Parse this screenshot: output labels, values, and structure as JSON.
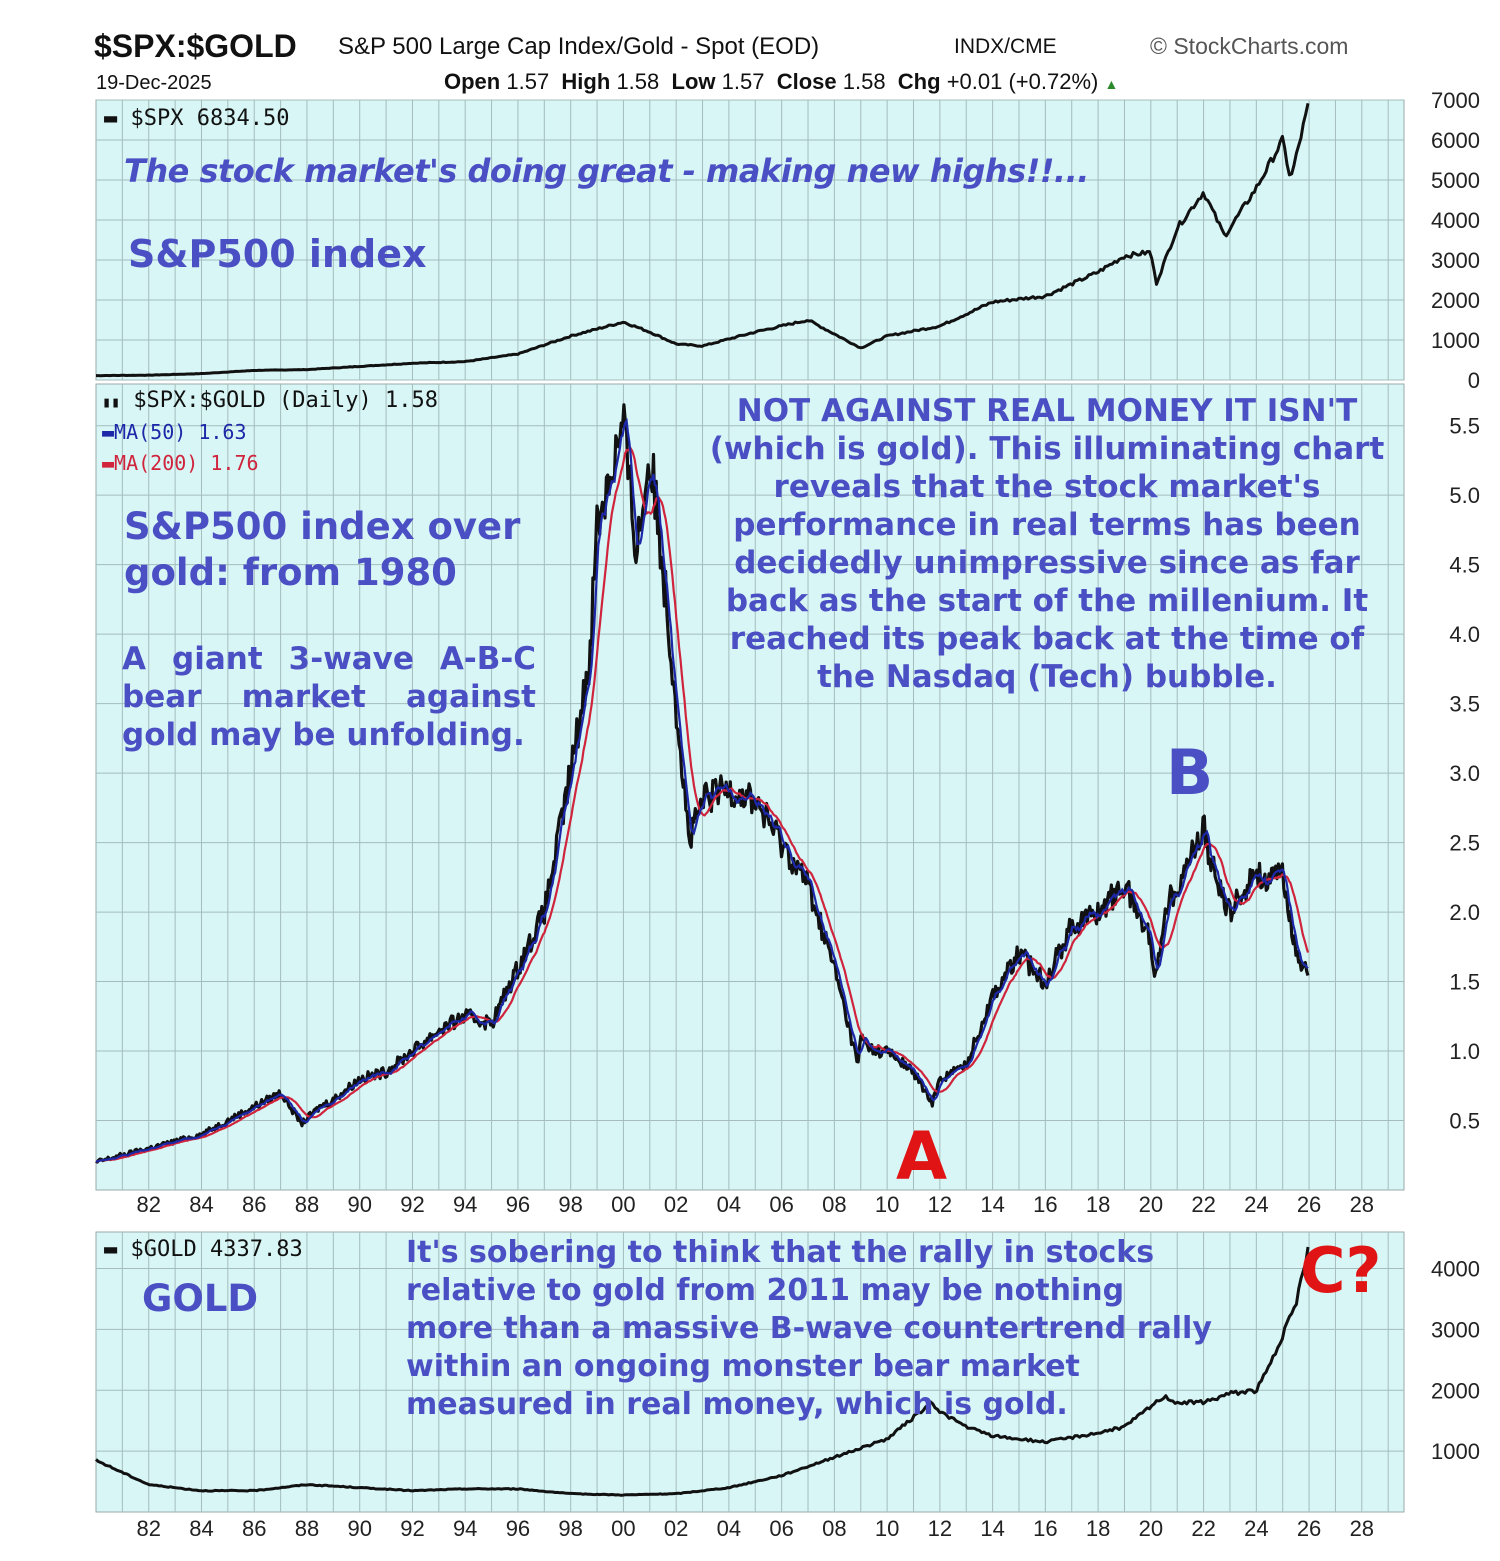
{
  "header": {
    "symbol": "$SPX:$GOLD",
    "description": "S&P 500 Large Cap Index/Gold - Spot (EOD)",
    "exchange": "INDX/CME",
    "source": "© StockCharts.com",
    "date": "19-Dec-2025",
    "open_label": "Open",
    "open": "1.57",
    "high_label": "High",
    "high": "1.58",
    "low_label": "Low",
    "low": "1.57",
    "close_label": "Close",
    "close": "1.58",
    "chg_label": "Chg",
    "chg": "+0.01 (+0.72%)"
  },
  "annotations": {
    "spx_note": "The stock market's doing great - making new highs!!...",
    "spx_title": "S&P500 index",
    "ratio_title": "S&P500 index over gold: from 1980",
    "ratio_abc": "A giant 3-wave A-B-C bear market against gold may be unfolding.",
    "ratio_note": "NOT AGAINST REAL MONEY IT ISN'T (which is gold). This illuminating chart reveals that the stock market's performance in real terms has been decidedly unimpressive since as far back as the start of the millenium. It reached its peak back at the time of the Nasdaq (Tech) bubble.",
    "wave_a": "A",
    "wave_b": "B",
    "wave_c": "C?",
    "gold_title": "GOLD",
    "gold_note": "It's sobering to think that the rally in stocks relative to gold from 2011 may be nothing more than a massive B-wave countertrend rally within an ongoing monster bear market measured in real money, which is gold."
  },
  "colors": {
    "panel_bg": "#d8f6f6",
    "grid": "#a4bcbc",
    "price_line": "#111111",
    "ma50": "#1c28a8",
    "ma200": "#d0243c",
    "annotation": "#4a4fc4",
    "wave_c": "#e01414"
  },
  "chart_data": [
    {
      "type": "line",
      "title": "S&P500 index",
      "series": [
        {
          "name": "$SPX 6834.50",
          "x": [
            1980,
            1982,
            1984,
            1986,
            1988,
            1990,
            1992,
            1994,
            1996,
            1998,
            2000,
            2001,
            2002,
            2003,
            2005,
            2007,
            2009,
            2010,
            2012,
            2014,
            2016,
            2018,
            2019,
            2020,
            2020.2,
            2021,
            2022,
            2022.8,
            2024,
            2025,
            2025.3,
            2025.96
          ],
          "y": [
            110,
            120,
            160,
            240,
            260,
            340,
            420,
            460,
            650,
            1100,
            1450,
            1200,
            900,
            850,
            1200,
            1500,
            800,
            1100,
            1350,
            1950,
            2100,
            2700,
            3100,
            3200,
            2400,
            3800,
            4700,
            3600,
            4800,
            6000,
            5000,
            6834
          ]
        }
      ],
      "yticks": [
        0,
        1000,
        2000,
        3000,
        4000,
        5000,
        6000,
        7000
      ],
      "ylim": [
        0,
        7000
      ]
    },
    {
      "type": "line",
      "title": "$SPX:$GOLD (Daily) 1.58",
      "series": [
        {
          "name": "$SPX:$GOLD (Daily) 1.58",
          "x": [
            1980,
            1981,
            1982,
            1983,
            1984,
            1985,
            1986,
            1987,
            1987.8,
            1988.5,
            1989,
            1990,
            1991,
            1992,
            1993,
            1994,
            1995,
            1996,
            1997,
            1998,
            1998.7,
            1999,
            1999.7,
            2000,
            2000.5,
            2001,
            2001.5,
            2002,
            2002.5,
            2003,
            2004,
            2005,
            2006,
            2007,
            2008,
            2008.9,
            2009,
            2009.5,
            2010,
            2011,
            2011.7,
            2012,
            2013,
            2014,
            2015,
            2016,
            2017,
            2018,
            2019,
            2020,
            2020.2,
            2020.5,
            2021,
            2022,
            2022.5,
            2023,
            2024,
            2024.5,
            2025,
            2025.5,
            2025.96
          ],
          "y": [
            0.2,
            0.25,
            0.3,
            0.35,
            0.4,
            0.5,
            0.6,
            0.7,
            0.48,
            0.6,
            0.65,
            0.8,
            0.85,
            1.0,
            1.15,
            1.25,
            1.2,
            1.6,
            2.0,
            3.0,
            3.8,
            4.8,
            5.3,
            5.5,
            4.6,
            5.3,
            4.5,
            3.5,
            2.5,
            2.8,
            2.9,
            2.8,
            2.5,
            2.2,
            1.6,
            0.9,
            1.1,
            1.0,
            1.0,
            0.85,
            0.62,
            0.8,
            0.9,
            1.4,
            1.7,
            1.5,
            1.9,
            2.0,
            2.2,
            1.8,
            1.5,
            2.0,
            2.2,
            2.6,
            2.2,
            2.0,
            2.3,
            2.2,
            2.3,
            1.7,
            1.58
          ]
        },
        {
          "name": "MA(50) 1.63"
        },
        {
          "name": "MA(200) 1.76"
        }
      ],
      "yticks": [
        0.5,
        1.0,
        1.5,
        2.0,
        2.5,
        3.0,
        3.5,
        4.0,
        4.5,
        5.0,
        5.5
      ],
      "ylim": [
        0,
        5.8
      ]
    },
    {
      "type": "line",
      "title": "GOLD",
      "series": [
        {
          "name": "$GOLD 4337.83",
          "x": [
            1980,
            1981,
            1982,
            1984,
            1986,
            1988,
            1990,
            1992,
            1994,
            1996,
            1998,
            2000,
            2002,
            2004,
            2006,
            2008,
            2010,
            2011.7,
            2012,
            2013,
            2014,
            2016,
            2018,
            2019,
            2020.5,
            2021,
            2022,
            2023,
            2024,
            2024.5,
            2025,
            2025.5,
            2025.96
          ],
          "y": [
            850,
            650,
            450,
            350,
            350,
            450,
            400,
            350,
            380,
            380,
            300,
            280,
            300,
            400,
            600,
            900,
            1200,
            1800,
            1650,
            1400,
            1250,
            1150,
            1300,
            1400,
            1900,
            1800,
            1800,
            1950,
            2000,
            2400,
            2900,
            3400,
            4337
          ]
        }
      ],
      "yticks": [
        1000,
        2000,
        3000,
        4000
      ],
      "ylim": [
        0,
        4600
      ]
    }
  ],
  "x_axis": {
    "start": 1980,
    "end": 2029.6,
    "tick_labels": [
      "82",
      "84",
      "86",
      "88",
      "90",
      "92",
      "94",
      "96",
      "98",
      "00",
      "02",
      "04",
      "06",
      "08",
      "10",
      "12",
      "14",
      "16",
      "18",
      "20",
      "22",
      "24",
      "26",
      "28"
    ]
  }
}
